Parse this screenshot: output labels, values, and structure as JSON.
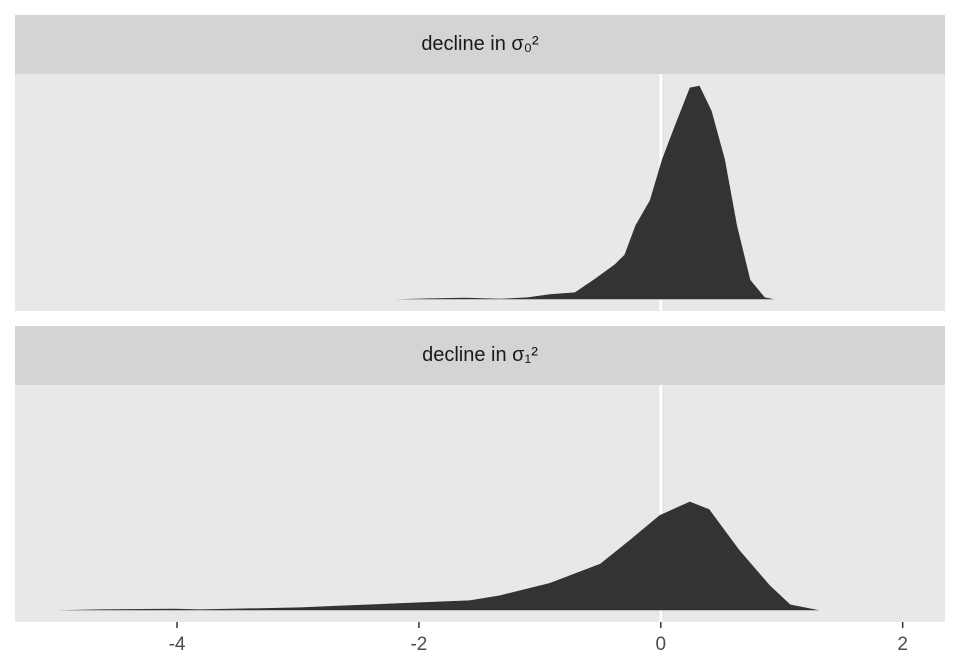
{
  "chart_data": [
    {
      "type": "area",
      "title": "decline in σ₀²",
      "color": "#333333",
      "vline": 0,
      "x": [
        -2.2,
        -1.9,
        -1.62,
        -1.33,
        -1.1,
        -0.92,
        -0.71,
        -0.55,
        -0.38,
        -0.3,
        -0.21,
        -0.09,
        0.01,
        0.12,
        0.24,
        0.32,
        0.42,
        0.53,
        0.63,
        0.74,
        0.86,
        0.94
      ],
      "values": [
        0,
        0.005,
        0.008,
        0.003,
        0.01,
        0.026,
        0.036,
        0.103,
        0.18,
        0.23,
        0.38,
        0.51,
        0.72,
        0.9,
        1.09,
        1.1,
        0.97,
        0.72,
        0.38,
        0.1,
        0.01,
        0
      ],
      "xlim": [
        -5.34,
        2.35
      ],
      "ylim": [
        -0.06,
        1.16
      ]
    },
    {
      "type": "area",
      "title": "decline in σ₁²",
      "color": "#333333",
      "vline": 0,
      "x": [
        -4.99,
        -4.64,
        -4.02,
        -3.81,
        -2.98,
        -2.57,
        -1.99,
        -1.58,
        -1.33,
        -0.92,
        -0.5,
        -0.26,
        -0.01,
        0.24,
        0.4,
        0.65,
        0.9,
        1.07,
        1.31
      ],
      "values": [
        0,
        0.005,
        0.008,
        0.005,
        0.015,
        0.026,
        0.041,
        0.051,
        0.077,
        0.14,
        0.24,
        0.36,
        0.49,
        0.56,
        0.52,
        0.31,
        0.13,
        0.03,
        0
      ],
      "xlim": [
        -5.34,
        2.35
      ],
      "ylim": [
        -0.06,
        1.16
      ],
      "xticks": [
        -4,
        -2,
        0,
        2
      ]
    }
  ]
}
